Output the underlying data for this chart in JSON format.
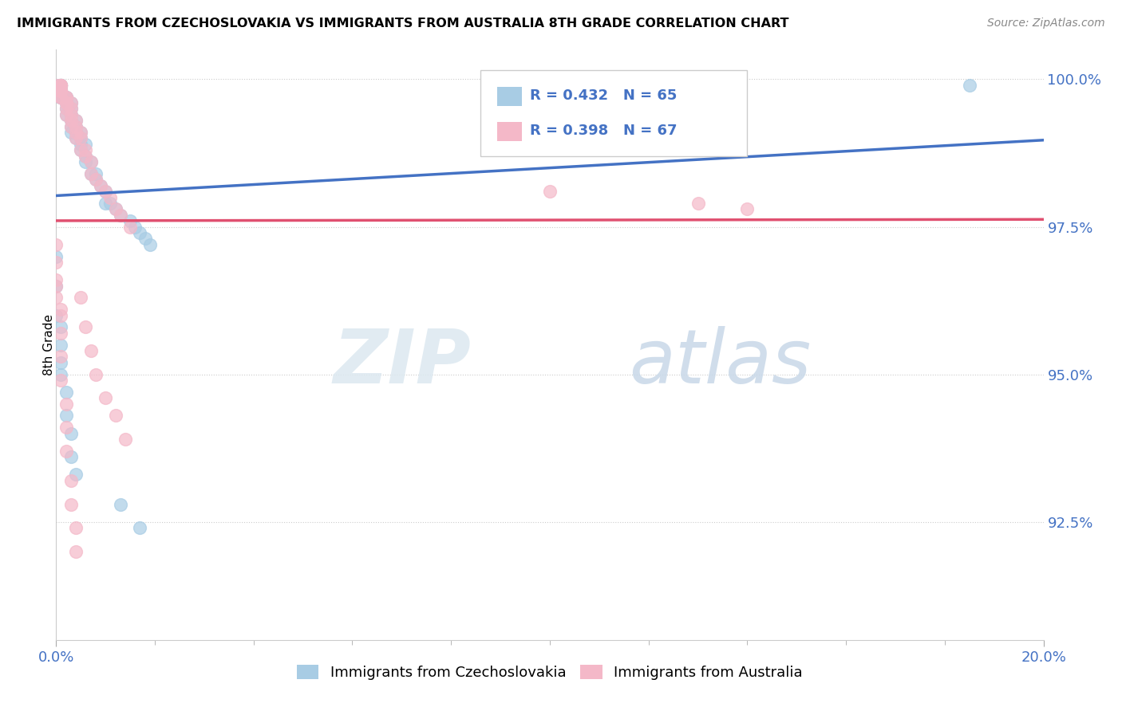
{
  "title": "IMMIGRANTS FROM CZECHOSLOVAKIA VS IMMIGRANTS FROM AUSTRALIA 8TH GRADE CORRELATION CHART",
  "source": "Source: ZipAtlas.com",
  "ylabel": "8th Grade",
  "ylabel_right_ticks": [
    "100.0%",
    "97.5%",
    "95.0%",
    "92.5%"
  ],
  "ylabel_right_values": [
    1.0,
    0.975,
    0.95,
    0.925
  ],
  "legend_blue_r": "R = 0.432",
  "legend_blue_n": "N = 65",
  "legend_pink_r": "R = 0.398",
  "legend_pink_n": "N = 67",
  "blue_color": "#a8cce4",
  "pink_color": "#f4b8c8",
  "blue_line_color": "#4472c4",
  "pink_line_color": "#e05070",
  "xmin": 0.0,
  "xmax": 0.2,
  "ymin": 0.905,
  "ymax": 1.005,
  "blue_scatter_x": [
    0.0,
    0.001,
    0.001,
    0.001,
    0.001,
    0.001,
    0.001,
    0.001,
    0.001,
    0.001,
    0.001,
    0.002,
    0.002,
    0.002,
    0.002,
    0.002,
    0.002,
    0.002,
    0.003,
    0.003,
    0.003,
    0.003,
    0.003,
    0.003,
    0.004,
    0.004,
    0.004,
    0.004,
    0.005,
    0.005,
    0.005,
    0.005,
    0.006,
    0.006,
    0.006,
    0.007,
    0.007,
    0.008,
    0.008,
    0.009,
    0.01,
    0.01,
    0.011,
    0.012,
    0.013,
    0.015,
    0.016,
    0.017,
    0.018,
    0.019,
    0.0,
    0.0,
    0.0,
    0.001,
    0.001,
    0.001,
    0.001,
    0.002,
    0.002,
    0.003,
    0.003,
    0.004,
    0.013,
    0.017,
    0.185
  ],
  "blue_scatter_y": [
    0.999,
    0.999,
    0.999,
    0.999,
    0.999,
    0.998,
    0.998,
    0.998,
    0.997,
    0.997,
    0.997,
    0.997,
    0.997,
    0.997,
    0.996,
    0.996,
    0.995,
    0.994,
    0.996,
    0.995,
    0.994,
    0.993,
    0.992,
    0.991,
    0.993,
    0.992,
    0.991,
    0.99,
    0.991,
    0.99,
    0.989,
    0.988,
    0.989,
    0.987,
    0.986,
    0.986,
    0.984,
    0.984,
    0.983,
    0.982,
    0.981,
    0.979,
    0.979,
    0.978,
    0.977,
    0.976,
    0.975,
    0.974,
    0.973,
    0.972,
    0.97,
    0.965,
    0.96,
    0.958,
    0.955,
    0.952,
    0.95,
    0.947,
    0.943,
    0.94,
    0.936,
    0.933,
    0.928,
    0.924,
    0.999
  ],
  "pink_scatter_x": [
    0.0,
    0.001,
    0.001,
    0.001,
    0.001,
    0.001,
    0.001,
    0.001,
    0.001,
    0.001,
    0.001,
    0.002,
    0.002,
    0.002,
    0.002,
    0.002,
    0.002,
    0.003,
    0.003,
    0.003,
    0.003,
    0.003,
    0.004,
    0.004,
    0.004,
    0.004,
    0.005,
    0.005,
    0.005,
    0.006,
    0.006,
    0.007,
    0.007,
    0.008,
    0.009,
    0.01,
    0.011,
    0.012,
    0.013,
    0.015,
    0.0,
    0.0,
    0.0,
    0.0,
    0.001,
    0.001,
    0.001,
    0.001,
    0.002,
    0.002,
    0.002,
    0.003,
    0.003,
    0.004,
    0.004,
    0.005,
    0.006,
    0.007,
    0.008,
    0.01,
    0.012,
    0.014,
    0.1,
    0.13,
    0.14,
    0.0,
    0.001
  ],
  "pink_scatter_y": [
    0.999,
    0.999,
    0.999,
    0.999,
    0.999,
    0.998,
    0.998,
    0.998,
    0.998,
    0.997,
    0.997,
    0.997,
    0.997,
    0.996,
    0.996,
    0.995,
    0.994,
    0.996,
    0.995,
    0.994,
    0.993,
    0.992,
    0.993,
    0.992,
    0.991,
    0.99,
    0.991,
    0.99,
    0.988,
    0.988,
    0.987,
    0.986,
    0.984,
    0.983,
    0.982,
    0.981,
    0.98,
    0.978,
    0.977,
    0.975,
    0.972,
    0.969,
    0.966,
    0.963,
    0.96,
    0.957,
    0.953,
    0.949,
    0.945,
    0.941,
    0.937,
    0.932,
    0.928,
    0.924,
    0.92,
    0.963,
    0.958,
    0.954,
    0.95,
    0.946,
    0.943,
    0.939,
    0.981,
    0.979,
    0.978,
    0.965,
    0.961
  ]
}
